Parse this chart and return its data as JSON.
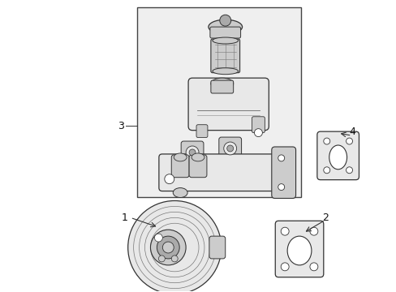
{
  "background_color": "#ffffff",
  "line_color": "#333333",
  "fill_light": "#e8e8e8",
  "fill_med": "#cccccc",
  "fill_dark": "#aaaaaa",
  "border_color": "#555555",
  "label_fontsize": 9,
  "lw": 0.9
}
